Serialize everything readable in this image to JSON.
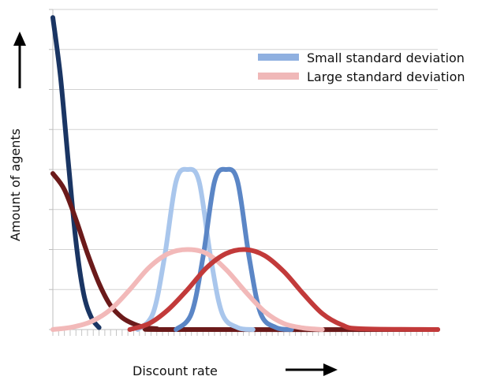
{
  "chart_data": {
    "type": "line",
    "title": "",
    "xlabel": "Discount rate",
    "ylabel": "Amount of agents",
    "xlim": [
      0,
      100
    ],
    "ylim": [
      0,
      8
    ],
    "grid": true,
    "legend": {
      "placement": "top-right",
      "entries": [
        {
          "label": "Small standard deviation",
          "color": "#8fb0e0"
        },
        {
          "label": "Large standard deviation",
          "color": "#f0b8b8"
        }
      ]
    },
    "series": [
      {
        "group": "small",
        "color": "#1a3563",
        "x": [
          0,
          2,
          4,
          6,
          8,
          10,
          12
        ],
        "y": [
          7.8,
          6.3,
          4.2,
          2.2,
          0.9,
          0.3,
          0.05
        ]
      },
      {
        "group": "large",
        "color": "#6b1a1a",
        "x": [
          0,
          3,
          6,
          9,
          12,
          15,
          18,
          21,
          24,
          27,
          30,
          100
        ],
        "y": [
          3.9,
          3.5,
          2.75,
          1.9,
          1.15,
          0.6,
          0.3,
          0.14,
          0.05,
          0.02,
          0.0,
          0.0
        ]
      },
      {
        "group": "small",
        "color": "#a9c6ec",
        "x": [
          22,
          26,
          29,
          32,
          35,
          38,
          41,
          44,
          48,
          52
        ],
        "y": [
          0.0,
          0.4,
          1.8,
          3.7,
          4.0,
          3.7,
          1.8,
          0.4,
          0.05,
          0.0
        ]
      },
      {
        "group": "small",
        "color": "#5b86c6",
        "x": [
          32,
          36,
          39,
          42,
          45,
          48,
          51,
          54,
          58,
          62
        ],
        "y": [
          0.0,
          0.4,
          1.8,
          3.7,
          4.0,
          3.7,
          1.8,
          0.4,
          0.05,
          0.0
        ]
      },
      {
        "group": "large",
        "color": "#f2b9b9",
        "x": [
          0,
          5,
          10,
          15,
          20,
          25,
          30,
          35,
          40,
          45,
          50,
          55,
          60,
          65,
          70
        ],
        "y": [
          0.0,
          0.06,
          0.2,
          0.5,
          1.0,
          1.55,
          1.9,
          2.0,
          1.9,
          1.5,
          0.95,
          0.45,
          0.15,
          0.04,
          0.0
        ]
      },
      {
        "group": "large",
        "color": "#c23a3a",
        "x": [
          20,
          25,
          30,
          35,
          40,
          45,
          50,
          55,
          60,
          65,
          70,
          75,
          80,
          100
        ],
        "y": [
          0.0,
          0.15,
          0.5,
          1.0,
          1.55,
          1.9,
          2.0,
          1.85,
          1.45,
          0.9,
          0.4,
          0.12,
          0.02,
          0.0
        ]
      }
    ]
  }
}
